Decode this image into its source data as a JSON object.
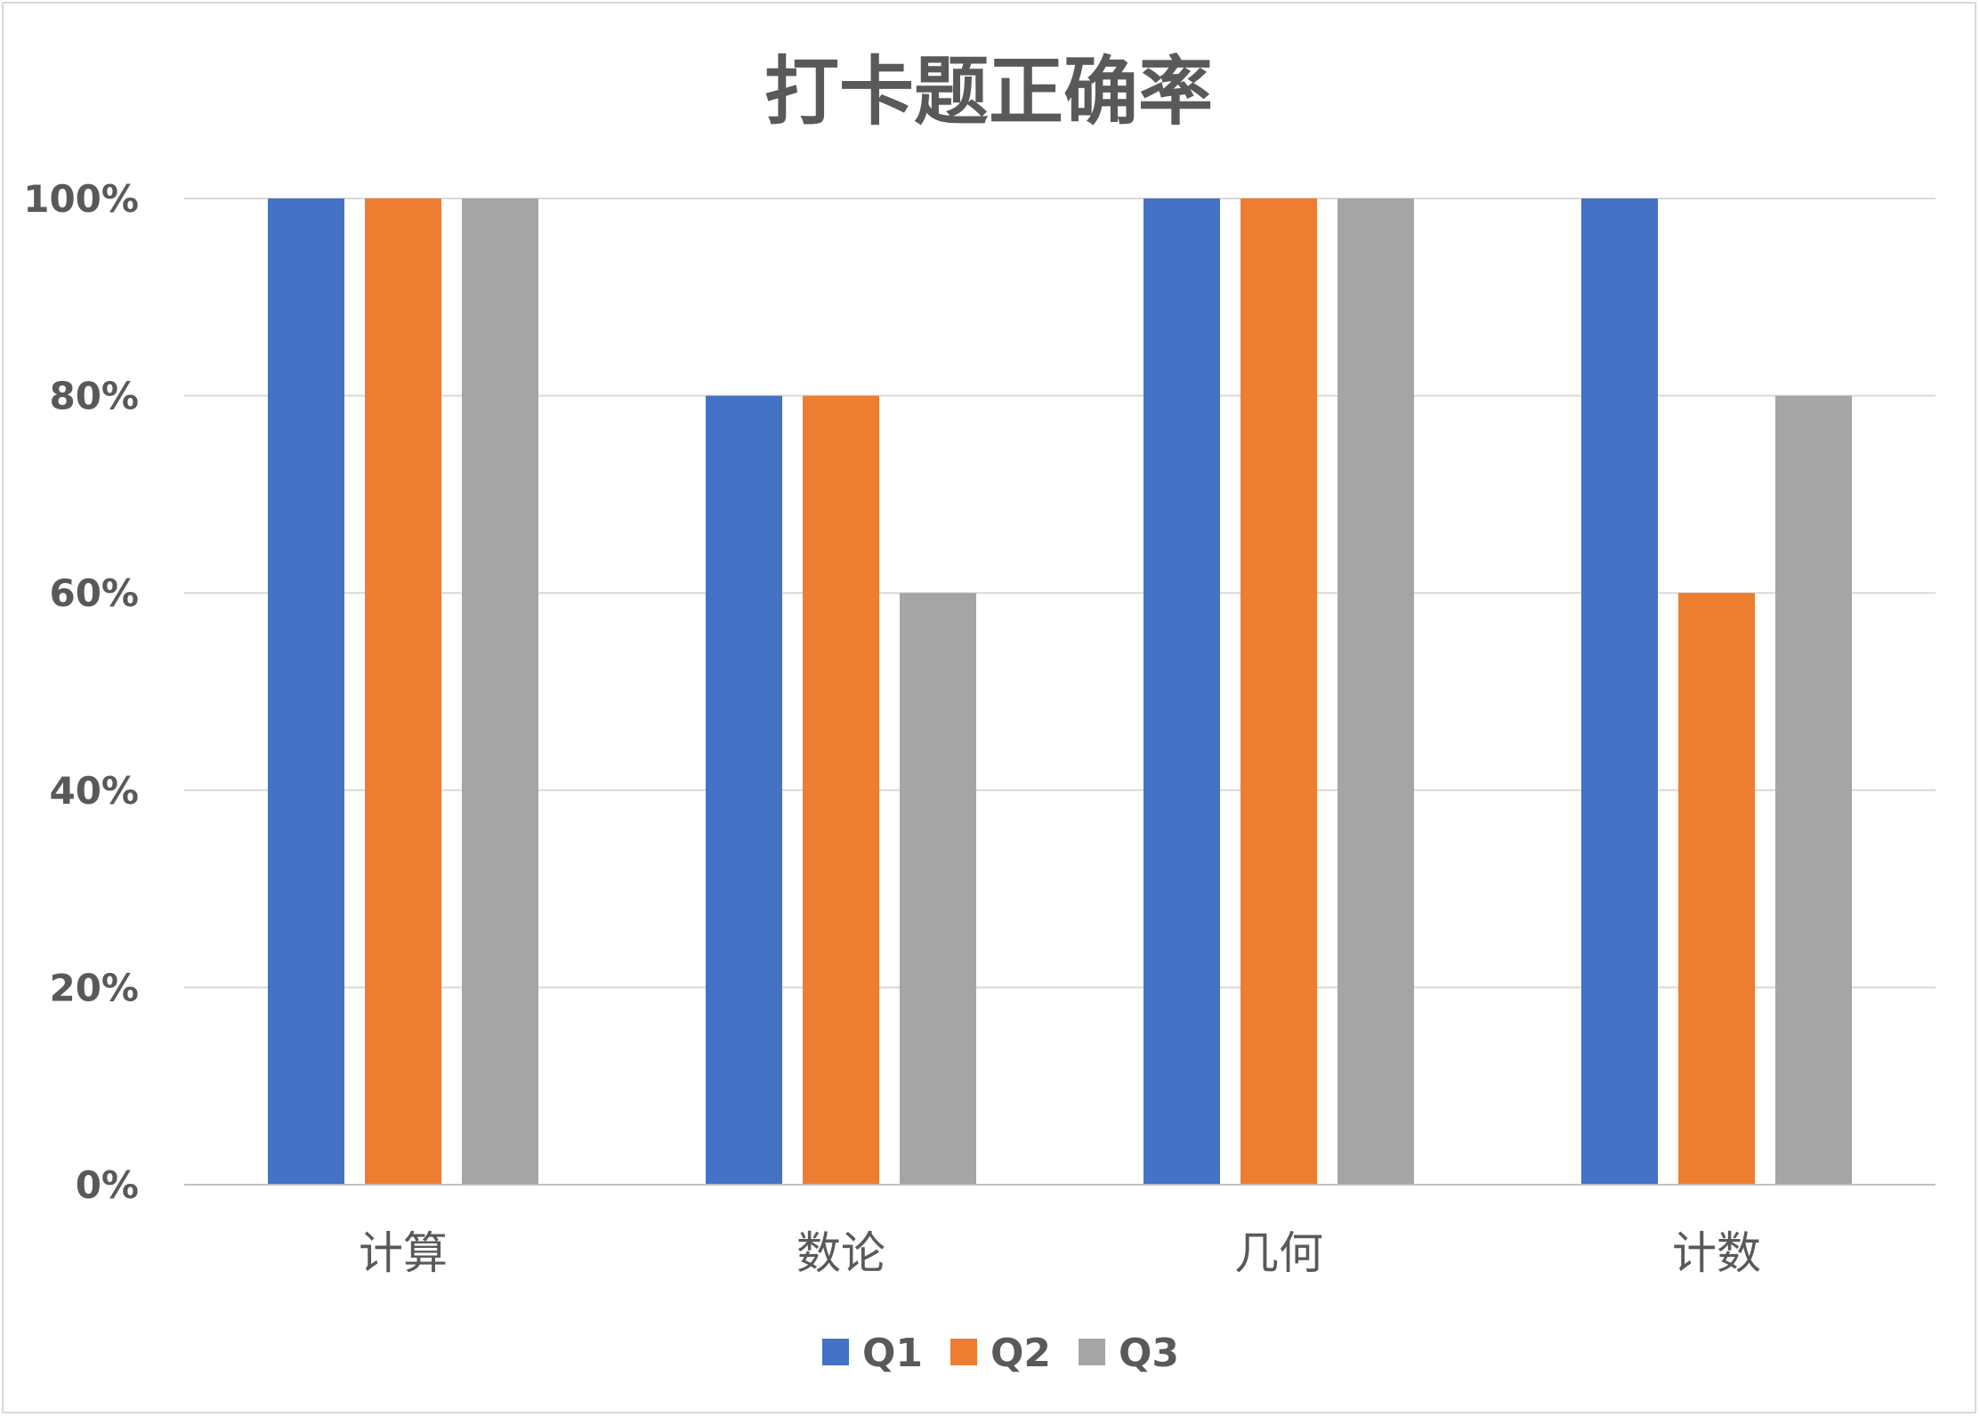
{
  "chart_data": {
    "type": "bar",
    "title": "打卡题正确率",
    "categories": [
      "计算",
      "数论",
      "几何",
      "计数"
    ],
    "series": [
      {
        "name": "Q1",
        "color": "#4472c4",
        "values": [
          100,
          80,
          100,
          100
        ]
      },
      {
        "name": "Q2",
        "color": "#ed7d31",
        "values": [
          100,
          80,
          100,
          60
        ]
      },
      {
        "name": "Q3",
        "color": "#a5a5a5",
        "values": [
          100,
          60,
          100,
          80
        ]
      }
    ],
    "yticks": [
      0,
      20,
      40,
      60,
      80,
      100
    ],
    "ytick_labels": [
      "0%",
      "20%",
      "40%",
      "60%",
      "80%",
      "100%"
    ],
    "ylim": [
      0,
      100
    ],
    "xlabel": "",
    "ylabel": "",
    "grid": true,
    "legend_position": "bottom",
    "gridline_color": "#d9d9d9",
    "axis_color": "#bfbfbf",
    "text_color": "#595959"
  }
}
